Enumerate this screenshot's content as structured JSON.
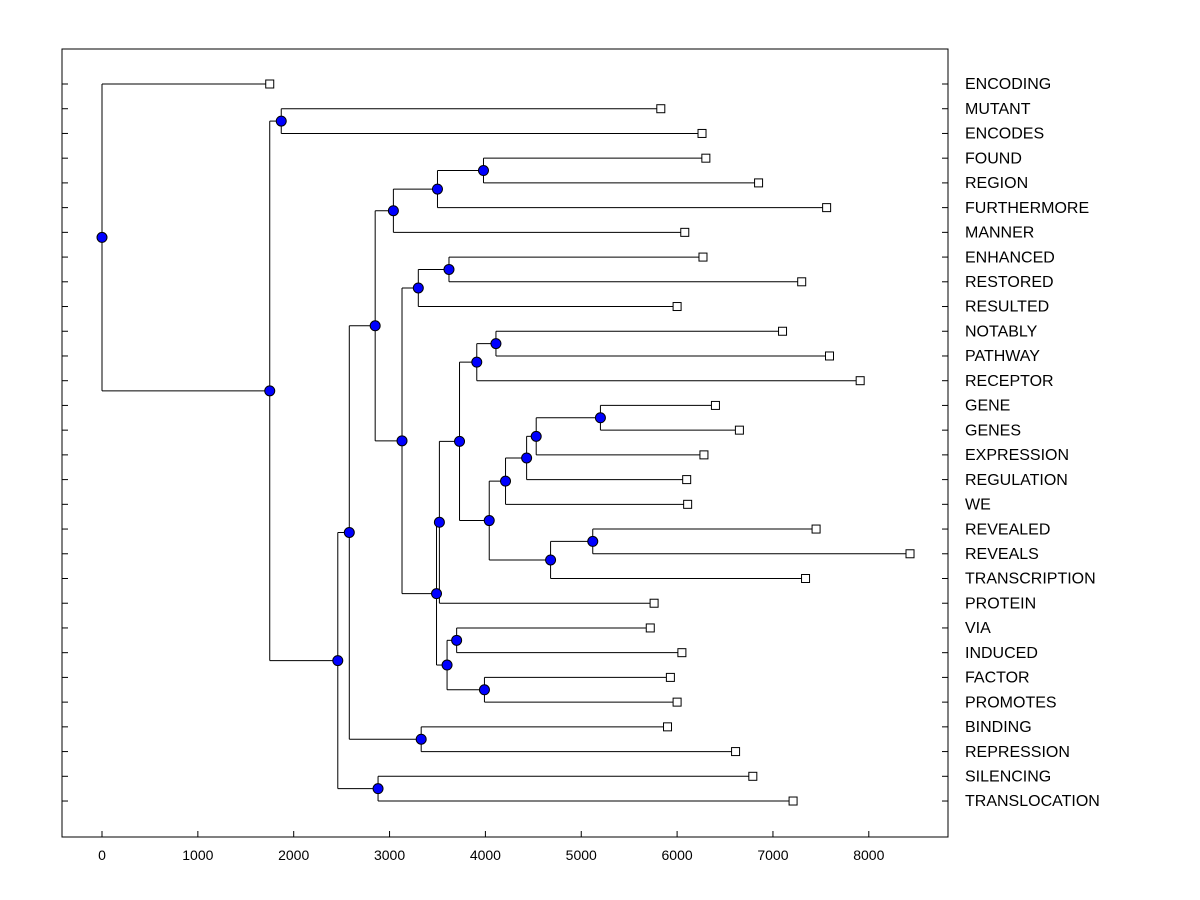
{
  "chart_data": {
    "type": "dendrogram",
    "title": "",
    "xlabel": "",
    "ylabel": "",
    "xlim": [
      -400,
      8900
    ],
    "xticks": [
      0,
      1000,
      2000,
      3000,
      4000,
      5000,
      6000,
      7000,
      8000
    ],
    "colors": {
      "node": "#0000ff",
      "line": "#000000",
      "leaf_fill": "#ffffff"
    },
    "leaves": [
      {
        "label": "ENCODING",
        "value": 1750
      },
      {
        "label": "MUTANT",
        "value": 5830
      },
      {
        "label": "ENCODES",
        "value": 6260
      },
      {
        "label": "FOUND",
        "value": 6300
      },
      {
        "label": "REGION",
        "value": 6850
      },
      {
        "label": "FURTHERMORE",
        "value": 7560
      },
      {
        "label": "MANNER",
        "value": 6080
      },
      {
        "label": "ENHANCED",
        "value": 6270
      },
      {
        "label": "RESTORED",
        "value": 7300
      },
      {
        "label": "RESULTED",
        "value": 6000
      },
      {
        "label": "NOTABLY",
        "value": 7100
      },
      {
        "label": "PATHWAY",
        "value": 7590
      },
      {
        "label": "RECEPTOR",
        "value": 7910
      },
      {
        "label": "GENE",
        "value": 6400
      },
      {
        "label": "GENES",
        "value": 6650
      },
      {
        "label": "EXPRESSION",
        "value": 6280
      },
      {
        "label": "REGULATION",
        "value": 6100
      },
      {
        "label": "WE",
        "value": 6110
      },
      {
        "label": "REVEALED",
        "value": 7450
      },
      {
        "label": "REVEALS",
        "value": 8430
      },
      {
        "label": "TRANSCRIPTION",
        "value": 7340
      },
      {
        "label": "PROTEIN",
        "value": 5760
      },
      {
        "label": "VIA",
        "value": 5720
      },
      {
        "label": "INDUCED",
        "value": 6050
      },
      {
        "label": "FACTOR",
        "value": 5930
      },
      {
        "label": "PROMOTES",
        "value": 6000
      },
      {
        "label": "BINDING",
        "value": 5900
      },
      {
        "label": "REPRESSION",
        "value": 6610
      },
      {
        "label": "SILENCING",
        "value": 6790
      },
      {
        "label": "TRANSLOCATION",
        "value": 7210
      }
    ],
    "nodes": [
      {
        "id": "root",
        "value": 0,
        "children": [
          "L0",
          "n_main"
        ]
      },
      {
        "id": "n_main",
        "value": 1750,
        "children": [
          "n_mut",
          "n_low"
        ]
      },
      {
        "id": "n_mut",
        "value": 1870,
        "children": [
          "L1",
          "L2"
        ]
      },
      {
        "id": "n_low",
        "value": 2460,
        "children": [
          "n_big",
          "n_silence"
        ]
      },
      {
        "id": "n_big",
        "value": 2580,
        "children": [
          "n_upper",
          "n_bind"
        ]
      },
      {
        "id": "n_upper",
        "value": 2850,
        "children": [
          "n_found_grp",
          "n_mid"
        ]
      },
      {
        "id": "n_found_grp",
        "value": 3040,
        "children": [
          "n_found3",
          "L6"
        ]
      },
      {
        "id": "n_found3",
        "value": 3500,
        "children": [
          "n_found",
          "L5"
        ]
      },
      {
        "id": "n_found",
        "value": 3980,
        "children": [
          "L3",
          "L4"
        ]
      },
      {
        "id": "n_mid",
        "value": 3130,
        "children": [
          "n_enh",
          "n_core"
        ]
      },
      {
        "id": "n_enh",
        "value": 3300,
        "children": [
          "n_enh2",
          "L9"
        ]
      },
      {
        "id": "n_enh2",
        "value": 3620,
        "children": [
          "L7",
          "L8"
        ]
      },
      {
        "id": "n_core",
        "value": 3490,
        "children": [
          "n_core2",
          "n_via_grp"
        ]
      },
      {
        "id": "n_core2",
        "value": 3520,
        "children": [
          "n_rec",
          "L21"
        ]
      },
      {
        "id": "n_rec",
        "value": 3730,
        "children": [
          "n_notably",
          "n_gene_grp"
        ]
      },
      {
        "id": "n_notably",
        "value": 3910,
        "children": [
          "n_notably2",
          "L12"
        ]
      },
      {
        "id": "n_notably2",
        "value": 4110,
        "children": [
          "L10",
          "L11"
        ]
      },
      {
        "id": "n_gene_grp",
        "value": 4040,
        "children": [
          "n_gene_chain",
          "n_revealed"
        ]
      },
      {
        "id": "n_gene_chain",
        "value": 4210,
        "children": [
          "n_gene3",
          "L17"
        ]
      },
      {
        "id": "n_gene3",
        "value": 4430,
        "children": [
          "n_gene2",
          "L16"
        ]
      },
      {
        "id": "n_gene2",
        "value": 4530,
        "children": [
          "n_gene",
          "L15"
        ]
      },
      {
        "id": "n_gene",
        "value": 5200,
        "children": [
          "L13",
          "L14"
        ]
      },
      {
        "id": "n_revealed",
        "value": 4680,
        "children": [
          "n_revealed2",
          "L20"
        ]
      },
      {
        "id": "n_revealed2",
        "value": 5120,
        "children": [
          "L18",
          "L19"
        ]
      },
      {
        "id": "n_via_grp",
        "value": 3600,
        "children": [
          "n_via",
          "n_factor"
        ]
      },
      {
        "id": "n_via",
        "value": 3700,
        "children": [
          "L22",
          "L23"
        ]
      },
      {
        "id": "n_factor",
        "value": 3990,
        "children": [
          "L24",
          "L25"
        ]
      },
      {
        "id": "n_bind",
        "value": 3330,
        "children": [
          "L26",
          "L27"
        ]
      },
      {
        "id": "n_silence",
        "value": 2880,
        "children": [
          "L28",
          "L29"
        ]
      }
    ]
  }
}
